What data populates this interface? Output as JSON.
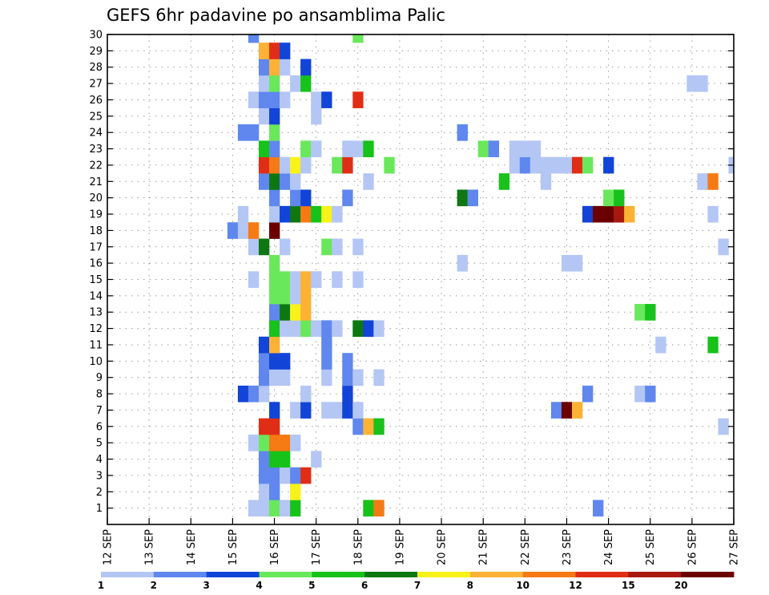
{
  "chart_data": {
    "type": "heatmap",
    "title": "GEFS 6hr padavine po ansamblima Palic",
    "xlabel": "",
    "ylabel": "",
    "x_tick_labels": [
      "12 SEP",
      "13 SEP",
      "14 SEP",
      "15 SEP",
      "16 SEP",
      "17 SEP",
      "18 SEP",
      "19 SEP",
      "20 SEP",
      "21 SEP",
      "22 SEP",
      "23 SEP",
      "24 SEP",
      "25 SEP",
      "26 SEP",
      "27 SEP"
    ],
    "y_tick_labels": [
      "1",
      "2",
      "3",
      "4",
      "5",
      "6",
      "7",
      "8",
      "9",
      "10",
      "11",
      "12",
      "13",
      "14",
      "15",
      "16",
      "17",
      "18",
      "19",
      "20",
      "21",
      "22",
      "23",
      "24",
      "25",
      "26",
      "27",
      "28",
      "29",
      "30"
    ],
    "xlim_steps": [
      0,
      60
    ],
    "steps_per_day": 4,
    "ylim": [
      0,
      30
    ],
    "grid": true,
    "colorbar": {
      "placement": "bottom",
      "levels": [
        "1",
        "2",
        "3",
        "4",
        "5",
        "6",
        "7",
        "8",
        "10",
        "12",
        "15",
        "20"
      ],
      "colors": [
        "#b4c6f4",
        "#5f87ee",
        "#1244d8",
        "#6ae85c",
        "#17c21a",
        "#0d7812",
        "#f8f21a",
        "#fbb235",
        "#f57a14",
        "#e02e16",
        "#a8180f",
        "#6a0000"
      ]
    },
    "cells": [
      [
        14,
        1,
        1
      ],
      [
        15,
        1,
        1
      ],
      [
        16,
        1,
        4
      ],
      [
        17,
        1,
        1
      ],
      [
        18,
        1,
        5
      ],
      [
        25,
        1,
        5
      ],
      [
        26,
        1,
        9
      ],
      [
        47,
        1,
        2
      ],
      [
        15,
        2,
        1
      ],
      [
        16,
        2,
        2
      ],
      [
        18,
        2,
        7
      ],
      [
        15,
        3,
        2
      ],
      [
        16,
        3,
        2
      ],
      [
        17,
        3,
        1
      ],
      [
        18,
        3,
        2
      ],
      [
        19,
        3,
        10
      ],
      [
        15,
        4,
        2
      ],
      [
        16,
        4,
        5
      ],
      [
        17,
        4,
        5
      ],
      [
        20,
        4,
        1
      ],
      [
        14,
        5,
        1
      ],
      [
        15,
        5,
        4
      ],
      [
        16,
        5,
        9
      ],
      [
        17,
        5,
        9
      ],
      [
        18,
        5,
        1
      ],
      [
        15,
        6,
        10
      ],
      [
        16,
        6,
        10
      ],
      [
        24,
        6,
        2
      ],
      [
        25,
        6,
        8
      ],
      [
        26,
        6,
        5
      ],
      [
        59,
        6,
        1
      ],
      [
        16,
        7,
        3
      ],
      [
        18,
        7,
        1
      ],
      [
        19,
        7,
        3
      ],
      [
        21,
        7,
        1
      ],
      [
        22,
        7,
        1
      ],
      [
        23,
        7,
        3
      ],
      [
        24,
        7,
        1
      ],
      [
        43,
        7,
        2
      ],
      [
        44,
        7,
        12
      ],
      [
        45,
        7,
        8
      ],
      [
        13,
        8,
        3
      ],
      [
        14,
        8,
        2
      ],
      [
        15,
        8,
        1
      ],
      [
        19,
        8,
        1
      ],
      [
        23,
        8,
        3
      ],
      [
        46,
        8,
        2
      ],
      [
        51,
        8,
        1
      ],
      [
        52,
        8,
        2
      ],
      [
        15,
        9,
        2
      ],
      [
        16,
        9,
        1
      ],
      [
        17,
        9,
        1
      ],
      [
        21,
        9,
        1
      ],
      [
        23,
        9,
        2
      ],
      [
        24,
        9,
        1
      ],
      [
        26,
        9,
        1
      ],
      [
        15,
        10,
        2
      ],
      [
        16,
        10,
        3
      ],
      [
        17,
        10,
        3
      ],
      [
        21,
        10,
        2
      ],
      [
        23,
        10,
        2
      ],
      [
        15,
        11,
        3
      ],
      [
        16,
        11,
        8
      ],
      [
        21,
        11,
        2
      ],
      [
        53,
        11,
        1
      ],
      [
        58,
        11,
        5
      ],
      [
        16,
        12,
        5
      ],
      [
        17,
        12,
        1
      ],
      [
        18,
        12,
        1
      ],
      [
        19,
        12,
        4
      ],
      [
        20,
        12,
        1
      ],
      [
        21,
        12,
        2
      ],
      [
        22,
        12,
        1
      ],
      [
        24,
        12,
        6
      ],
      [
        25,
        12,
        3
      ],
      [
        26,
        12,
        1
      ],
      [
        16,
        13,
        2
      ],
      [
        17,
        13,
        6
      ],
      [
        18,
        13,
        7
      ],
      [
        19,
        13,
        8
      ],
      [
        51,
        13,
        4
      ],
      [
        52,
        13,
        5
      ],
      [
        16,
        14,
        4
      ],
      [
        17,
        14,
        4
      ],
      [
        18,
        14,
        1
      ],
      [
        19,
        14,
        8
      ],
      [
        14,
        15,
        1
      ],
      [
        16,
        15,
        4
      ],
      [
        17,
        15,
        4
      ],
      [
        18,
        15,
        1
      ],
      [
        19,
        15,
        8
      ],
      [
        20,
        15,
        1
      ],
      [
        22,
        15,
        1
      ],
      [
        24,
        15,
        1
      ],
      [
        16,
        16,
        4
      ],
      [
        34,
        16,
        1
      ],
      [
        44,
        16,
        1
      ],
      [
        45,
        16,
        1
      ],
      [
        14,
        17,
        1
      ],
      [
        15,
        17,
        6
      ],
      [
        17,
        17,
        1
      ],
      [
        21,
        17,
        4
      ],
      [
        22,
        17,
        1
      ],
      [
        24,
        17,
        1
      ],
      [
        59,
        17,
        1
      ],
      [
        12,
        18,
        2
      ],
      [
        13,
        18,
        1
      ],
      [
        14,
        18,
        9
      ],
      [
        16,
        18,
        12
      ],
      [
        13,
        19,
        1
      ],
      [
        16,
        19,
        1
      ],
      [
        17,
        19,
        3
      ],
      [
        18,
        19,
        6
      ],
      [
        19,
        19,
        9
      ],
      [
        20,
        19,
        5
      ],
      [
        21,
        19,
        7
      ],
      [
        22,
        19,
        1
      ],
      [
        46,
        19,
        3
      ],
      [
        47,
        19,
        12
      ],
      [
        48,
        19,
        12
      ],
      [
        49,
        19,
        11
      ],
      [
        50,
        19,
        8
      ],
      [
        58,
        19,
        1
      ],
      [
        16,
        20,
        2
      ],
      [
        18,
        20,
        2
      ],
      [
        19,
        20,
        3
      ],
      [
        23,
        20,
        2
      ],
      [
        34,
        20,
        6
      ],
      [
        35,
        20,
        2
      ],
      [
        48,
        20,
        4
      ],
      [
        49,
        20,
        5
      ],
      [
        15,
        21,
        2
      ],
      [
        16,
        21,
        6
      ],
      [
        17,
        21,
        2
      ],
      [
        18,
        21,
        1
      ],
      [
        25,
        21,
        1
      ],
      [
        38,
        21,
        5
      ],
      [
        42,
        21,
        1
      ],
      [
        57,
        21,
        1
      ],
      [
        58,
        21,
        9
      ],
      [
        15,
        22,
        10
      ],
      [
        16,
        22,
        9
      ],
      [
        17,
        22,
        1
      ],
      [
        18,
        22,
        7
      ],
      [
        19,
        22,
        1
      ],
      [
        22,
        22,
        4
      ],
      [
        23,
        22,
        10
      ],
      [
        27,
        22,
        4
      ],
      [
        39,
        22,
        1
      ],
      [
        40,
        22,
        2
      ],
      [
        41,
        22,
        1
      ],
      [
        42,
        22,
        1
      ],
      [
        43,
        22,
        1
      ],
      [
        44,
        22,
        1
      ],
      [
        45,
        22,
        10
      ],
      [
        46,
        22,
        4
      ],
      [
        48,
        22,
        3
      ],
      [
        60,
        22,
        1
      ],
      [
        15,
        23,
        5
      ],
      [
        16,
        23,
        2
      ],
      [
        19,
        23,
        4
      ],
      [
        20,
        23,
        1
      ],
      [
        23,
        23,
        1
      ],
      [
        24,
        23,
        1
      ],
      [
        25,
        23,
        5
      ],
      [
        36,
        23,
        4
      ],
      [
        37,
        23,
        2
      ],
      [
        39,
        23,
        1
      ],
      [
        40,
        23,
        1
      ],
      [
        41,
        23,
        1
      ],
      [
        13,
        24,
        2
      ],
      [
        14,
        24,
        2
      ],
      [
        16,
        24,
        4
      ],
      [
        34,
        24,
        2
      ],
      [
        15,
        25,
        1
      ],
      [
        16,
        25,
        3
      ],
      [
        20,
        25,
        1
      ],
      [
        14,
        26,
        1
      ],
      [
        15,
        26,
        2
      ],
      [
        16,
        26,
        2
      ],
      [
        17,
        26,
        1
      ],
      [
        20,
        26,
        1
      ],
      [
        21,
        26,
        3
      ],
      [
        24,
        26,
        10
      ],
      [
        15,
        27,
        1
      ],
      [
        16,
        27,
        4
      ],
      [
        18,
        27,
        1
      ],
      [
        19,
        27,
        5
      ],
      [
        56,
        27,
        1
      ],
      [
        57,
        27,
        1
      ],
      [
        15,
        28,
        2
      ],
      [
        16,
        28,
        8
      ],
      [
        17,
        28,
        1
      ],
      [
        19,
        28,
        3
      ],
      [
        15,
        29,
        8
      ],
      [
        16,
        29,
        10
      ],
      [
        17,
        29,
        3
      ],
      [
        14,
        30,
        2
      ],
      [
        24,
        30,
        4
      ]
    ]
  }
}
